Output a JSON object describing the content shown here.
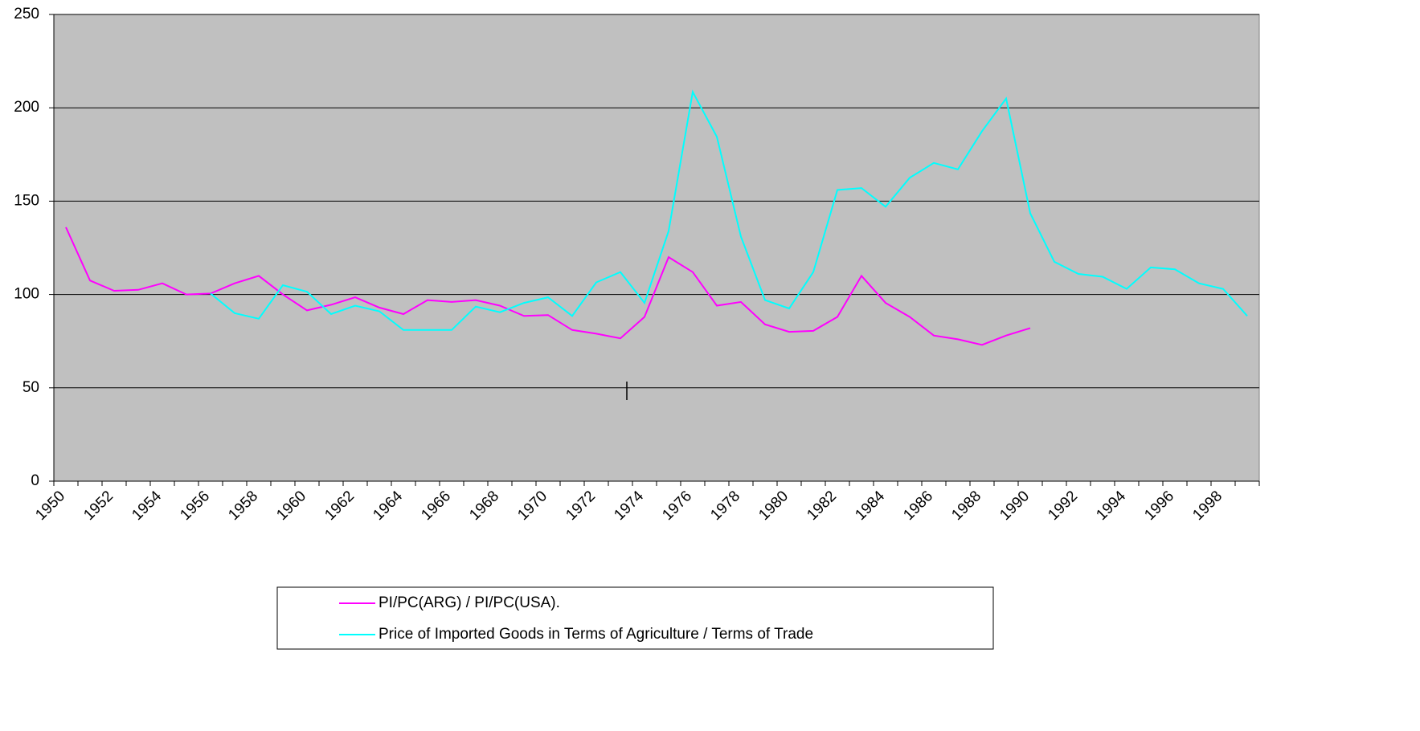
{
  "chart_data": {
    "type": "line",
    "categories": [
      "1950",
      null,
      "1952",
      null,
      "1954",
      null,
      "1956",
      null,
      "1958",
      null,
      "1960",
      null,
      "1962",
      null,
      "1964",
      null,
      "1966",
      null,
      "1968",
      null,
      "1970",
      null,
      "1972",
      null,
      "1974",
      null,
      "1976",
      null,
      "1978",
      null,
      "1980",
      null,
      "1982",
      null,
      "1984",
      null,
      "1986",
      null,
      "1988",
      null,
      "1990",
      null,
      "1992",
      null,
      "1994",
      null,
      "1996",
      null,
      "1998",
      null
    ],
    "series": [
      {
        "name": "PI/PC(ARG) / PI/PC(USA).",
        "color": "#ff00ff",
        "values": [
          136,
          107.5,
          102,
          102.5,
          106,
          100,
          100.5,
          106,
          110,
          100,
          91.5,
          94.5,
          98.5,
          93,
          89.5,
          97,
          96,
          97,
          94,
          88.5,
          89,
          81,
          79,
          76.5,
          88,
          120,
          112,
          94,
          96,
          84,
          80,
          80.5,
          88,
          110,
          95.5,
          88,
          78,
          76,
          73,
          78,
          82,
          null,
          null,
          null,
          null,
          null,
          null,
          null,
          null,
          null
        ]
      },
      {
        "name": "Price of Imported Goods in Terms of Agriculture / Terms of Trade",
        "color": "#00ffff",
        "values": [
          null,
          null,
          null,
          null,
          null,
          null,
          100.5,
          90,
          87,
          105,
          101.5,
          89.5,
          94,
          91,
          81,
          81,
          81,
          93.5,
          90.5,
          95.5,
          98.5,
          88.5,
          106.5,
          112,
          95.5,
          134,
          208.5,
          184.5,
          131,
          97,
          92.5,
          112,
          156,
          157,
          147,
          162.5,
          170.5,
          167,
          187.5,
          205,
          143.5,
          117.5,
          111,
          109.5,
          103,
          114.5,
          113.5,
          106,
          103,
          88.5
        ]
      }
    ],
    "ylim": [
      0,
      250
    ],
    "yticks": [
      0,
      50,
      100,
      150,
      200,
      250
    ],
    "grid": true
  }
}
